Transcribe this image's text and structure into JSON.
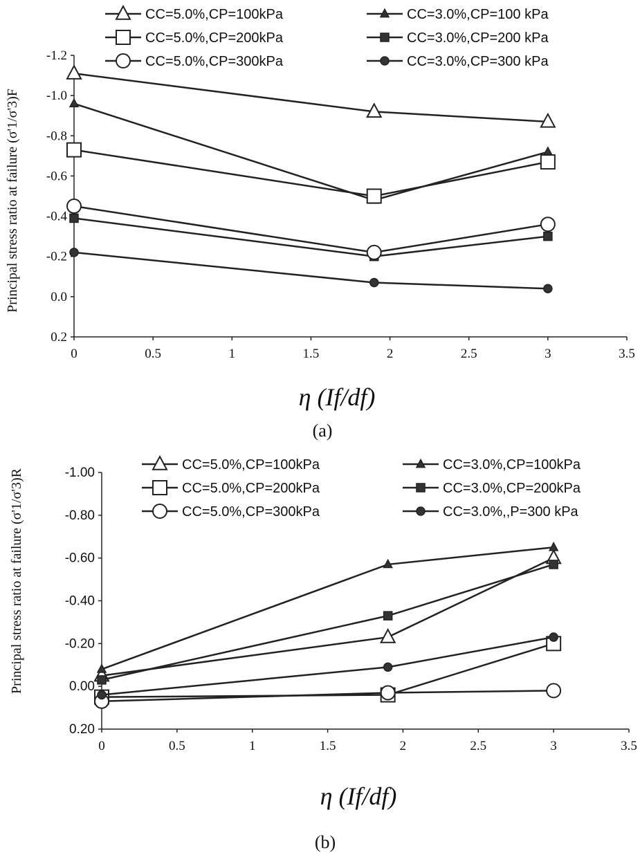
{
  "chart_data": [
    {
      "type": "line",
      "caption": "(a)",
      "ylabel": "Principal stress ratio at failure (σ'1/σ'3)F",
      "xlabel": "η (If/df)",
      "xlim": [
        0,
        3.5
      ],
      "ylim_display_top_to_bottom": [
        -1.2,
        0.2
      ],
      "x_ticks": [
        "0",
        "0.5",
        "1",
        "1.5",
        "2",
        "2.5",
        "3",
        "3.5"
      ],
      "y_ticks": [
        "-1.2",
        "-1.0",
        "-0.8",
        "-0.6",
        "-0.4",
        "-0.2",
        "0.0",
        "0.2"
      ],
      "y_tick_values": [
        -1.2,
        -1.0,
        -0.8,
        -0.6,
        -0.4,
        -0.2,
        0.0,
        0.2
      ],
      "x": [
        0,
        1.9,
        3.0
      ],
      "legend_placement": "top",
      "series": [
        {
          "name": "CC=5.0%,CP=100kPa",
          "marker": "triangle-open",
          "values": [
            -1.11,
            -0.92,
            -0.87
          ]
        },
        {
          "name": "CC=3.0%,CP=100 kPa",
          "marker": "triangle-filled",
          "values": [
            -0.96,
            -0.48,
            -0.72
          ]
        },
        {
          "name": "CC=5.0%,CP=200kPa",
          "marker": "square-open",
          "values": [
            -0.73,
            -0.5,
            -0.67
          ]
        },
        {
          "name": "CC=3.0%,CP=200 kPa",
          "marker": "square-filled",
          "values": [
            -0.39,
            -0.2,
            -0.3
          ]
        },
        {
          "name": "CC=5.0%,CP=300kPa",
          "marker": "circle-open",
          "values": [
            -0.45,
            -0.22,
            -0.36
          ]
        },
        {
          "name": "CC=3.0%,CP=300 kPa",
          "marker": "circle-filled",
          "values": [
            -0.22,
            -0.07,
            -0.04
          ]
        }
      ]
    },
    {
      "type": "line",
      "caption": "(b)",
      "ylabel": "Principal stress ratio at failure (σ'1/σ'3)R",
      "xlabel": "η (If/df)",
      "xlim": [
        0,
        3.5
      ],
      "ylim_display_top_to_bottom": [
        -1.0,
        0.2
      ],
      "x_ticks": [
        "0",
        "0.5",
        "1",
        "1.5",
        "2",
        "2.5",
        "3",
        "3.5"
      ],
      "y_ticks": [
        "-1.00",
        "-0.80",
        "-0.60",
        "-0.40",
        "-0.20",
        "0.00",
        "0.20"
      ],
      "y_tick_values": [
        -1.0,
        -0.8,
        -0.6,
        -0.4,
        -0.2,
        0.0,
        0.2
      ],
      "x": [
        0,
        1.9,
        3.0
      ],
      "legend_placement": "top",
      "series": [
        {
          "name": "CC=5.0%,CP=100kPa",
          "marker": "triangle-open",
          "values": [
            -0.05,
            -0.23,
            -0.6
          ]
        },
        {
          "name": "CC=3.0%,CP=100kPa",
          "marker": "triangle-filled",
          "values": [
            -0.08,
            -0.57,
            -0.65
          ]
        },
        {
          "name": "CC=5.0%,CP=200kPa",
          "marker": "square-open",
          "values": [
            0.05,
            0.04,
            -0.2
          ]
        },
        {
          "name": "CC=3.0%,CP=200kPa",
          "marker": "square-filled",
          "values": [
            -0.03,
            -0.33,
            -0.57
          ]
        },
        {
          "name": "CC=5.0%,CP=300kPa",
          "marker": "circle-open",
          "values": [
            0.07,
            0.03,
            0.02
          ]
        },
        {
          "name": "CC=3.0%,,P=300 kPa",
          "marker": "circle-filled",
          "values": [
            0.04,
            -0.09,
            -0.23
          ]
        }
      ]
    }
  ]
}
